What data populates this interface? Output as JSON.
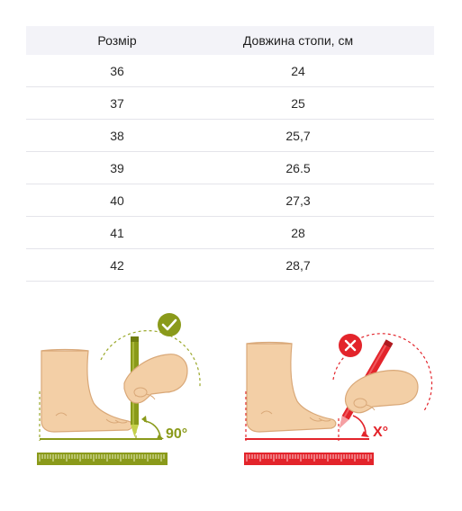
{
  "table": {
    "headers": {
      "size": "Розмір",
      "length": "Довжина стопи, см"
    },
    "rows": [
      {
        "size": "36",
        "length": "24"
      },
      {
        "size": "37",
        "length": "25"
      },
      {
        "size": "38",
        "length": "25,7"
      },
      {
        "size": "39",
        "length": "26.5"
      },
      {
        "size": "40",
        "length": "27,3"
      },
      {
        "size": "41",
        "length": "28"
      },
      {
        "size": "42",
        "length": "28,7"
      }
    ]
  },
  "illustrations": {
    "correct": {
      "angle_label": "90°",
      "color": "#8a9a1a",
      "status_icon": "check-icon"
    },
    "incorrect": {
      "angle_label": "X°",
      "color": "#e3242b",
      "status_icon": "cross-icon"
    },
    "skin_color": "#f3cfa6",
    "skin_outline": "#d9a878"
  }
}
